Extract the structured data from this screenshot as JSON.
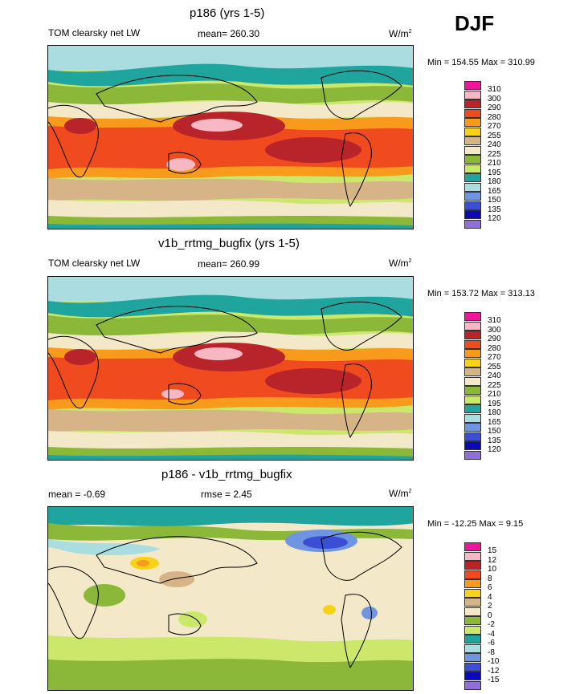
{
  "season": "DJF",
  "panels": [
    {
      "title": "p186 (yrs 1-5)",
      "field": "TOM clearsky net LW",
      "stat": "mean= 260.30",
      "units": "W/m",
      "units_exp": "2",
      "minmax": "Min = 154.55 Max = 310.99",
      "legend": [
        {
          "label": "310",
          "color": "#f0169b"
        },
        {
          "label": "300",
          "color": "#f7b8c4"
        },
        {
          "label": "290",
          "color": "#b8242a"
        },
        {
          "label": "280",
          "color": "#f04b1e"
        },
        {
          "label": "270",
          "color": "#f89a1b"
        },
        {
          "label": "255",
          "color": "#f7d216"
        },
        {
          "label": "240",
          "color": "#d7b488"
        },
        {
          "label": "225",
          "color": "#f3e8c8"
        },
        {
          "label": "210",
          "color": "#8cb83a"
        },
        {
          "label": "195",
          "color": "#cbe86b"
        },
        {
          "label": "180",
          "color": "#20a49e"
        },
        {
          "label": "165",
          "color": "#a9dde0"
        },
        {
          "label": "150",
          "color": "#6f95e0"
        },
        {
          "label": "135",
          "color": "#3a4fd6"
        },
        {
          "label": "120",
          "color": "#0a0ab8"
        },
        {
          "label": "",
          "color": "#8e70d8"
        }
      ]
    },
    {
      "title": "v1b_rrtmg_bugfix (yrs 1-5)",
      "field": "TOM clearsky net LW",
      "stat": "mean= 260.99",
      "units": "W/m",
      "units_exp": "2",
      "minmax": "Min = 153.72 Max = 313.13",
      "legend": [
        {
          "label": "310",
          "color": "#f0169b"
        },
        {
          "label": "300",
          "color": "#f7b8c4"
        },
        {
          "label": "290",
          "color": "#b8242a"
        },
        {
          "label": "280",
          "color": "#f04b1e"
        },
        {
          "label": "270",
          "color": "#f89a1b"
        },
        {
          "label": "255",
          "color": "#f7d216"
        },
        {
          "label": "240",
          "color": "#d7b488"
        },
        {
          "label": "225",
          "color": "#f3e8c8"
        },
        {
          "label": "210",
          "color": "#8cb83a"
        },
        {
          "label": "195",
          "color": "#cbe86b"
        },
        {
          "label": "180",
          "color": "#20a49e"
        },
        {
          "label": "165",
          "color": "#a9dde0"
        },
        {
          "label": "150",
          "color": "#6f95e0"
        },
        {
          "label": "135",
          "color": "#3a4fd6"
        },
        {
          "label": "120",
          "color": "#0a0ab8"
        },
        {
          "label": "",
          "color": "#8e70d8"
        }
      ]
    },
    {
      "title": "p186 - v1b_rrtmg_bugfix",
      "field": "mean =  -0.69",
      "stat": "rmse =   2.45",
      "units": "W/m",
      "units_exp": "2",
      "minmax": "Min = -12.25 Max =   9.15",
      "legend": [
        {
          "label": "15",
          "color": "#f0169b"
        },
        {
          "label": "12",
          "color": "#f7b8c4"
        },
        {
          "label": "10",
          "color": "#b8242a"
        },
        {
          "label": "8",
          "color": "#f04b1e"
        },
        {
          "label": "6",
          "color": "#f89a1b"
        },
        {
          "label": "4",
          "color": "#f7d216"
        },
        {
          "label": "2",
          "color": "#d7b488"
        },
        {
          "label": "0",
          "color": "#f3e8c8"
        },
        {
          "label": "-2",
          "color": "#8cb83a"
        },
        {
          "label": "-4",
          "color": "#cbe86b"
        },
        {
          "label": "-6",
          "color": "#20a49e"
        },
        {
          "label": "-8",
          "color": "#a9dde0"
        },
        {
          "label": "-10",
          "color": "#6f95e0"
        },
        {
          "label": "-12",
          "color": "#3a4fd6"
        },
        {
          "label": "-15",
          "color": "#0a0ab8"
        },
        {
          "label": "",
          "color": "#8e70d8"
        }
      ]
    }
  ]
}
